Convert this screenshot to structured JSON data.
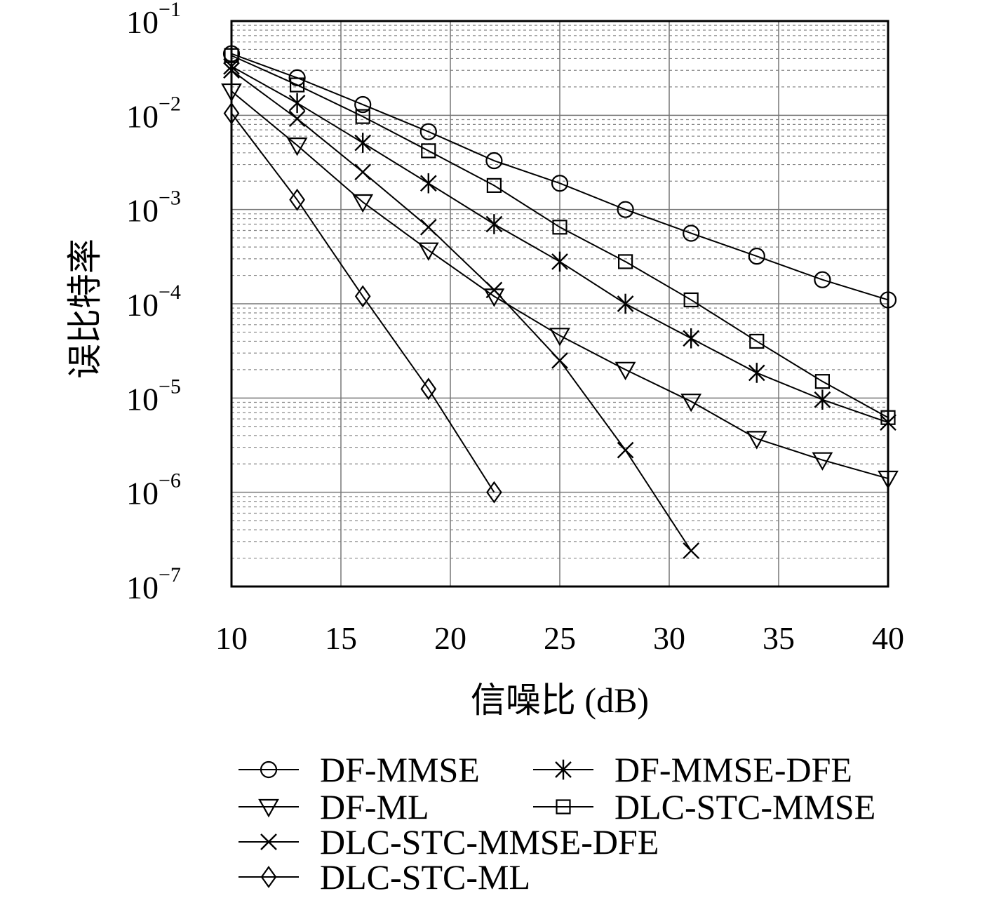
{
  "chart_data": {
    "type": "line",
    "xlabel": "信噪比 (dB)",
    "ylabel": "误比特率",
    "xlim": [
      10,
      40
    ],
    "ylim": [
      1e-07,
      0.1
    ],
    "xscale": "linear",
    "yscale": "log",
    "xticks": [
      10,
      15,
      20,
      25,
      30,
      35,
      40
    ],
    "xtick_labels": [
      "10",
      "15",
      "20",
      "25",
      "30",
      "35",
      "40"
    ],
    "yticks": [
      1e-07,
      1e-06,
      1e-05,
      0.0001,
      0.001,
      0.01,
      0.1
    ],
    "ytick_labels": [
      {
        "base": "10",
        "exp": "−7"
      },
      {
        "base": "10",
        "exp": "−6"
      },
      {
        "base": "10",
        "exp": "−5"
      },
      {
        "base": "10",
        "exp": "−4"
      },
      {
        "base": "10",
        "exp": "−3"
      },
      {
        "base": "10",
        "exp": "−2"
      },
      {
        "base": "10",
        "exp": "−1"
      }
    ],
    "grid": true,
    "legend_position": "bottom",
    "series": [
      {
        "name": "DF-MMSE",
        "marker": "circle",
        "x": [
          10,
          13,
          16,
          19,
          22,
          25,
          28,
          31,
          34,
          37,
          40
        ],
        "y": [
          0.045,
          0.025,
          0.013,
          0.0067,
          0.0033,
          0.0019,
          0.001,
          0.00056,
          0.00032,
          0.00018,
          0.00011
        ]
      },
      {
        "name": "DF-MMSE-DFE",
        "marker": "star",
        "x": [
          10,
          13,
          16,
          19,
          22,
          25,
          28,
          31,
          34,
          37,
          40
        ],
        "y": [
          0.033,
          0.0135,
          0.0051,
          0.0019,
          0.0007,
          0.00028,
          0.0001,
          4.3e-05,
          1.85e-05,
          9.6e-06,
          5.5e-06
        ]
      },
      {
        "name": "DF-ML",
        "marker": "triangle-down",
        "x": [
          10,
          13,
          16,
          19,
          22,
          25,
          28,
          31,
          34,
          37,
          40
        ],
        "y": [
          0.018,
          0.0048,
          0.0012,
          0.00037,
          0.00012,
          4.6e-05,
          2e-05,
          9.2e-06,
          3.7e-06,
          2.2e-06,
          1.4e-06
        ]
      },
      {
        "name": "DLC-STC-MMSE",
        "marker": "square",
        "x": [
          10,
          13,
          16,
          19,
          22,
          25,
          28,
          31,
          34,
          37,
          40
        ],
        "y": [
          0.043,
          0.021,
          0.0097,
          0.0042,
          0.0018,
          0.00065,
          0.00028,
          0.00011,
          4e-05,
          1.5e-05,
          6.2e-06
        ]
      },
      {
        "name": "DLC-STC-MMSE-DFE",
        "marker": "x",
        "x": [
          10,
          13,
          16,
          19,
          22,
          25,
          28,
          31
        ],
        "y": [
          0.03,
          0.0092,
          0.0025,
          0.00065,
          0.00014,
          2.5e-05,
          2.8e-06,
          2.4e-07
        ]
      },
      {
        "name": "DLC-STC-ML",
        "marker": "diamond",
        "x": [
          10,
          13,
          16,
          19,
          22
        ],
        "y": [
          0.0105,
          0.00127,
          0.00012,
          1.25e-05,
          1e-06
        ]
      }
    ]
  }
}
